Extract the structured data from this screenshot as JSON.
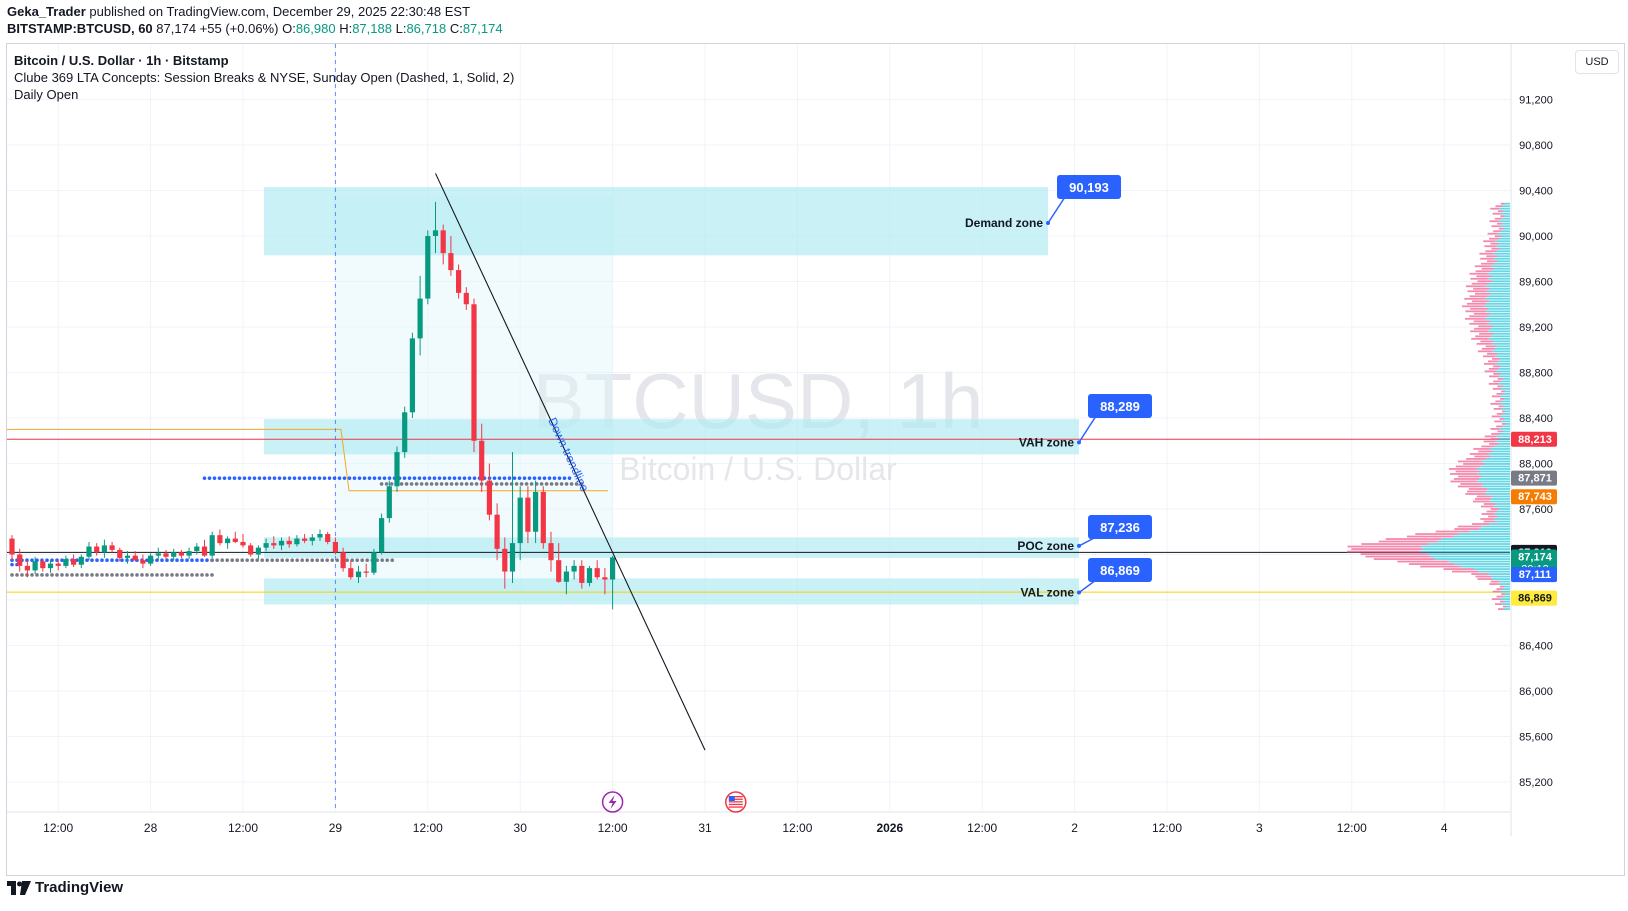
{
  "header": {
    "author": "Geka_Trader",
    "published_text": "published on TradingView.com, December 29, 2025 22:30:48 EST",
    "symbol_line": "BITSTAMP:BTCUSD, 60",
    "last": "87,174",
    "change": "+55 (+0.06%)",
    "o_label": "O:",
    "o": "86,980",
    "h_label": "H:",
    "h": "87,188",
    "l_label": "L:",
    "l": "86,718",
    "c_label": "C:",
    "c": "87,174"
  },
  "legend": {
    "title": "Bitcoin / U.S. Dollar · 1h · Bitstamp",
    "indicator1": "Clube 369 LTA Concepts: Session Breaks & NYSE, Sunday Open (Dashed, 1, Solid, 2)",
    "indicator2": "Daily Open"
  },
  "currency_button": "USD",
  "footer": {
    "brand": "TradingView",
    "logo_icon": "tradingview-logo-icon"
  },
  "colors": {
    "up": "#089981",
    "down": "#f23645",
    "zone": "#b2ebf2",
    "label_blue": "#2962ff",
    "vp_up": "#26c6da",
    "vp_down": "#f06292",
    "trend": "#131722"
  },
  "chart_data": {
    "type": "candlestick",
    "watermark_symbol": "BTCUSD, 1h",
    "watermark_name": "Bitcoin / U.S. Dollar",
    "y_ticks": [
      91200,
      90800,
      90400,
      90000,
      89600,
      89200,
      88800,
      88400,
      88000,
      87600,
      87200,
      86800,
      86400,
      86000,
      85600,
      85200
    ],
    "y_tick_labels": [
      "91,200",
      "90,800",
      "90,400",
      "90,000",
      "89,600",
      "89,200",
      "88,800",
      "88,400",
      "88,000",
      "87,600",
      "87,200",
      "86,800",
      "86,400",
      "86,000",
      "85,600",
      "85,200"
    ],
    "x_ticks": [
      {
        "label": "12:00",
        "idx": 6
      },
      {
        "label": "28",
        "idx": 18
      },
      {
        "label": "12:00",
        "idx": 30
      },
      {
        "label": "29",
        "idx": 42
      },
      {
        "label": "12:00",
        "idx": 54
      },
      {
        "label": "30",
        "idx": 66
      },
      {
        "label": "12:00",
        "idx": 78
      },
      {
        "label": "31",
        "idx": 90
      },
      {
        "label": "12:00",
        "idx": 102
      },
      {
        "label": "2026",
        "idx": 114,
        "bold": true
      },
      {
        "label": "12:00",
        "idx": 126
      },
      {
        "label": "2",
        "idx": 138
      },
      {
        "label": "12:00",
        "idx": 150
      },
      {
        "label": "3",
        "idx": 162
      },
      {
        "label": "12:00",
        "idx": 174
      },
      {
        "label": "4",
        "idx": 186
      }
    ],
    "candles": [
      [
        87340,
        87370,
        87150,
        87200
      ],
      [
        87200,
        87250,
        87050,
        87100
      ],
      [
        87100,
        87150,
        87000,
        87060
      ],
      [
        87060,
        87180,
        87030,
        87140
      ],
      [
        87140,
        87160,
        87050,
        87080
      ],
      [
        87080,
        87150,
        87040,
        87120
      ],
      [
        87120,
        87160,
        87060,
        87100
      ],
      [
        87100,
        87190,
        87080,
        87160
      ],
      [
        87160,
        87200,
        87090,
        87110
      ],
      [
        87110,
        87200,
        87080,
        87180
      ],
      [
        87180,
        87310,
        87150,
        87270
      ],
      [
        87270,
        87300,
        87190,
        87220
      ],
      [
        87220,
        87330,
        87170,
        87280
      ],
      [
        87280,
        87310,
        87220,
        87240
      ],
      [
        87240,
        87260,
        87140,
        87170
      ],
      [
        87170,
        87230,
        87120,
        87190
      ],
      [
        87190,
        87230,
        87140,
        87150
      ],
      [
        87150,
        87200,
        87080,
        87120
      ],
      [
        87120,
        87210,
        87100,
        87190
      ],
      [
        87190,
        87260,
        87150,
        87210
      ],
      [
        87210,
        87240,
        87160,
        87180
      ],
      [
        87180,
        87250,
        87150,
        87220
      ],
      [
        87220,
        87240,
        87170,
        87190
      ],
      [
        87190,
        87260,
        87160,
        87230
      ],
      [
        87230,
        87300,
        87200,
        87270
      ],
      [
        87270,
        87330,
        87180,
        87190
      ],
      [
        87190,
        87400,
        87170,
        87370
      ],
      [
        87370,
        87420,
        87280,
        87300
      ],
      [
        87300,
        87360,
        87250,
        87340
      ],
      [
        87340,
        87400,
        87300,
        87310
      ],
      [
        87310,
        87380,
        87260,
        87280
      ],
      [
        87280,
        87300,
        87180,
        87200
      ],
      [
        87200,
        87280,
        87160,
        87260
      ],
      [
        87260,
        87340,
        87230,
        87300
      ],
      [
        87300,
        87360,
        87250,
        87280
      ],
      [
        87280,
        87350,
        87240,
        87320
      ],
      [
        87320,
        87360,
        87260,
        87290
      ],
      [
        87290,
        87370,
        87270,
        87340
      ],
      [
        87340,
        87380,
        87300,
        87320
      ],
      [
        87320,
        87380,
        87280,
        87350
      ],
      [
        87350,
        87420,
        87320,
        87380
      ],
      [
        87380,
        87400,
        87290,
        87310
      ],
      [
        87310,
        87350,
        87200,
        87220
      ],
      [
        87220,
        87260,
        87050,
        87080
      ],
      [
        87080,
        87150,
        86980,
        87000
      ],
      [
        87000,
        87100,
        86950,
        87050
      ],
      [
        87050,
        87120,
        87000,
        87040
      ],
      [
        87040,
        87250,
        87020,
        87220
      ],
      [
        87220,
        87560,
        87200,
        87520
      ],
      [
        87520,
        87850,
        87480,
        87800
      ],
      [
        87800,
        88150,
        87750,
        88100
      ],
      [
        88100,
        88500,
        88050,
        88450
      ],
      [
        88450,
        89150,
        88400,
        89100
      ],
      [
        89100,
        89650,
        88950,
        89450
      ],
      [
        89450,
        90050,
        89400,
        90000
      ],
      [
        90000,
        90300,
        89850,
        90050
      ],
      [
        90050,
        90100,
        89750,
        89850
      ],
      [
        89850,
        90000,
        89650,
        89700
      ],
      [
        89700,
        89750,
        89450,
        89500
      ],
      [
        89500,
        89550,
        89350,
        89400
      ],
      [
        89400,
        89450,
        88100,
        88200
      ],
      [
        88200,
        88350,
        87750,
        87850
      ],
      [
        87850,
        88000,
        87500,
        87550
      ],
      [
        87550,
        87650,
        87150,
        87250
      ],
      [
        87250,
        87350,
        86900,
        87050
      ],
      [
        87050,
        88100,
        86950,
        87300
      ],
      [
        87300,
        87800,
        87150,
        87700
      ],
      [
        87700,
        87800,
        87300,
        87400
      ],
      [
        87400,
        87850,
        87300,
        87750
      ],
      [
        87750,
        87800,
        87250,
        87300
      ],
      [
        87300,
        87400,
        87050,
        87150
      ],
      [
        87150,
        87300,
        86950,
        86960
      ],
      [
        86960,
        87100,
        86850,
        87050
      ],
      [
        87050,
        87150,
        86980,
        87100
      ],
      [
        87100,
        87150,
        86900,
        86950
      ],
      [
        86950,
        87100,
        86920,
        87080
      ],
      [
        87080,
        87150,
        86980,
        87000
      ],
      [
        87000,
        87080,
        86850,
        86980
      ],
      [
        86980,
        87188,
        86718,
        87174
      ]
    ],
    "zones": [
      {
        "name": "Demand zone",
        "top": 90430,
        "bottom": 89830,
        "label": "90,193",
        "label_price": 90193
      },
      {
        "name": "VAH zone",
        "top": 88390,
        "bottom": 88080,
        "label": "88,289",
        "label_price": 88289
      },
      {
        "name": "POC zone",
        "top": 87350,
        "bottom": 87170,
        "label": "87,236",
        "label_price": 87236
      },
      {
        "name": "VAL zone",
        "top": 86990,
        "bottom": 86760,
        "label": "86,869",
        "label_price": 86869
      }
    ],
    "trendline": {
      "label": "Down trendline",
      "from": {
        "idx": 55,
        "price": 90550
      },
      "to": {
        "idx": 90,
        "price": 85480
      }
    },
    "session_break_idx": 42,
    "price_tags": [
      {
        "price": 88213,
        "label": "88,213",
        "bg": "#f23645",
        "fg": "#ffffff"
      },
      {
        "price": 87871,
        "label": "87,871",
        "bg": "#787b86",
        "fg": "#ffffff"
      },
      {
        "price": 87743,
        "label": "87,743",
        "bg": "#f57c00",
        "fg": "#ffffff"
      },
      {
        "price": 87219,
        "label": "87,219",
        "bg": "#131722",
        "fg": "#ffffff"
      },
      {
        "price": 87174,
        "label": "87,174",
        "bg": "#089981",
        "fg": "#ffffff",
        "sub": "29:13"
      },
      {
        "price": 87111,
        "label": "87,111",
        "bg": "#2962ff",
        "fg": "#ffffff"
      },
      {
        "price": 86869,
        "label": "86,869",
        "bg": "#ffeb3b",
        "fg": "#131722"
      }
    ],
    "horizontal_lines": [
      {
        "price": 88213,
        "color": "#f23645",
        "from_idx": 0
      },
      {
        "price": 86869,
        "color": "#f5d000",
        "from_idx": 0
      },
      {
        "price": 87219,
        "color": "#131722",
        "from_idx": 0
      }
    ],
    "daily_open_line": {
      "price": 88300,
      "to_price": 87760,
      "color": "#f5a623"
    },
    "dot_lines": [
      {
        "price": 87871,
        "color": "#2962ff",
        "from_idx": 25,
        "to_idx": 73
      },
      {
        "price": 87820,
        "color": "#787b86",
        "from_idx": 48,
        "to_idx": 74
      },
      {
        "price": 87150,
        "color": "#2962ff",
        "from_idx": 0,
        "to_idx": 26
      },
      {
        "price": 87150,
        "color": "#787b86",
        "from_idx": 26,
        "to_idx": 50
      },
      {
        "price": 87020,
        "color": "#787b86",
        "from_idx": 0,
        "to_idx": 26
      },
      {
        "price": 87111,
        "color": "#2962ff",
        "from_idx": 0,
        "to_idx": 1
      }
    ],
    "event_icons": [
      {
        "idx": 78,
        "name": "lightning-event-icon"
      },
      {
        "idx": 94,
        "name": "us-flag-event-icon"
      }
    ]
  }
}
